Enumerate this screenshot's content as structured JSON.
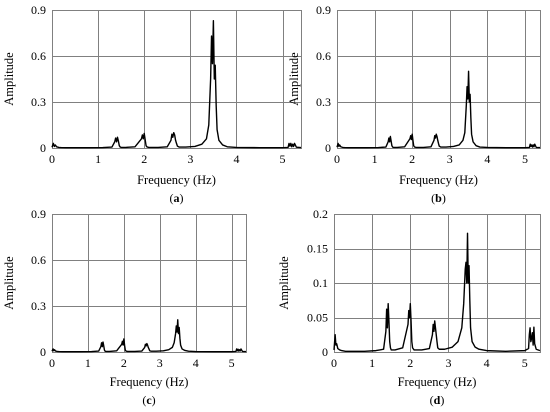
{
  "chart_data": [
    {
      "id": "a",
      "type": "line",
      "caption_letter": "a",
      "xlabel": "Frequency (Hz)",
      "ylabel": "Amplitude",
      "xlim": [
        0,
        5.4
      ],
      "ylim": [
        0,
        0.9
      ],
      "xticks": [
        0,
        1,
        2,
        3,
        4,
        5
      ],
      "yticks": [
        0,
        0.3,
        0.6,
        0.9
      ],
      "ytick_labels": [
        "0",
        "0.3",
        "0.6",
        "0.9"
      ],
      "grid": true,
      "series": [
        {
          "x": [
            0,
            0.03,
            0.05,
            0.07,
            0.1,
            0.15,
            0.2,
            0.3,
            0.5,
            0.8,
            1.1,
            1.3,
            1.36,
            1.38,
            1.4,
            1.42,
            1.44,
            1.46,
            1.48,
            1.5,
            1.6,
            1.8,
            1.94,
            1.96,
            1.98,
            2.0,
            2.02,
            2.04,
            2.06,
            2.1,
            2.3,
            2.5,
            2.58,
            2.6,
            2.62,
            2.64,
            2.66,
            2.68,
            2.7,
            2.72,
            2.76,
            2.9,
            3.1,
            3.25,
            3.35,
            3.4,
            3.44,
            3.46,
            3.48,
            3.5,
            3.52,
            3.54,
            3.56,
            3.58,
            3.62,
            3.7,
            3.8,
            4.0,
            4.5,
            5.0,
            5.12,
            5.14,
            5.16,
            5.18,
            5.2,
            5.22,
            5.24,
            5.26,
            5.3,
            5.4
          ],
          "y": [
            0.005,
            0.03,
            0.01,
            0.02,
            0.008,
            0.004,
            0.003,
            0.002,
            0.002,
            0.002,
            0.003,
            0.006,
            0.04,
            0.065,
            0.04,
            0.07,
            0.045,
            0.015,
            0.006,
            0.004,
            0.004,
            0.008,
            0.06,
            0.085,
            0.06,
            0.095,
            0.055,
            0.015,
            0.007,
            0.004,
            0.004,
            0.008,
            0.05,
            0.09,
            0.07,
            0.1,
            0.085,
            0.05,
            0.03,
            0.012,
            0.006,
            0.006,
            0.01,
            0.025,
            0.06,
            0.15,
            0.45,
            0.73,
            0.55,
            0.83,
            0.45,
            0.54,
            0.28,
            0.12,
            0.05,
            0.02,
            0.008,
            0.004,
            0.002,
            0.002,
            0.004,
            0.03,
            0.012,
            0.03,
            0.008,
            0.025,
            0.01,
            0.03,
            0.005,
            0.003
          ]
        }
      ]
    },
    {
      "id": "b",
      "type": "line",
      "caption_letter": "b",
      "xlabel": "Frequency (Hz)",
      "ylabel": "Amplitude",
      "xlim": [
        0,
        5.4
      ],
      "ylim": [
        0,
        0.9
      ],
      "xticks": [
        0,
        1,
        2,
        3,
        4,
        5
      ],
      "yticks": [
        0,
        0.3,
        0.6,
        0.9
      ],
      "ytick_labels": [
        "0",
        "0.3",
        "0.6",
        "0.9"
      ],
      "grid": true,
      "series": [
        {
          "x": [
            0,
            0.03,
            0.05,
            0.07,
            0.1,
            0.15,
            0.2,
            0.3,
            0.5,
            0.8,
            1.1,
            1.3,
            1.36,
            1.38,
            1.4,
            1.42,
            1.44,
            1.46,
            1.48,
            1.5,
            1.6,
            1.8,
            1.94,
            1.96,
            1.98,
            2.0,
            2.02,
            2.04,
            2.06,
            2.1,
            2.3,
            2.5,
            2.58,
            2.6,
            2.62,
            2.64,
            2.66,
            2.68,
            2.7,
            2.72,
            2.76,
            2.9,
            3.1,
            3.25,
            3.35,
            3.4,
            3.44,
            3.46,
            3.48,
            3.5,
            3.52,
            3.54,
            3.56,
            3.58,
            3.62,
            3.7,
            3.8,
            4.0,
            4.5,
            5.0,
            5.12,
            5.14,
            5.16,
            5.18,
            5.2,
            5.22,
            5.24,
            5.26,
            5.3,
            5.4
          ],
          "y": [
            0.005,
            0.03,
            0.01,
            0.02,
            0.008,
            0.004,
            0.003,
            0.002,
            0.002,
            0.002,
            0.003,
            0.006,
            0.04,
            0.065,
            0.04,
            0.075,
            0.045,
            0.015,
            0.006,
            0.004,
            0.004,
            0.008,
            0.06,
            0.08,
            0.055,
            0.09,
            0.05,
            0.015,
            0.007,
            0.004,
            0.004,
            0.008,
            0.05,
            0.08,
            0.065,
            0.09,
            0.075,
            0.05,
            0.03,
            0.012,
            0.006,
            0.006,
            0.01,
            0.02,
            0.05,
            0.1,
            0.28,
            0.4,
            0.32,
            0.5,
            0.3,
            0.35,
            0.2,
            0.09,
            0.04,
            0.015,
            0.006,
            0.004,
            0.002,
            0.002,
            0.004,
            0.025,
            0.01,
            0.02,
            0.006,
            0.02,
            0.008,
            0.025,
            0.004,
            0.003
          ]
        }
      ]
    },
    {
      "id": "c",
      "type": "line",
      "caption_letter": "c",
      "xlabel": "Frequency (Hz)",
      "ylabel": "Amplitude",
      "xlim": [
        0,
        5.4
      ],
      "ylim": [
        0,
        0.9
      ],
      "xticks": [
        0,
        1,
        2,
        3,
        4,
        5
      ],
      "yticks": [
        0,
        0.3,
        0.6,
        0.9
      ],
      "ytick_labels": [
        "0",
        "0.3",
        "0.6",
        "0.9"
      ],
      "grid": true,
      "series": [
        {
          "x": [
            0,
            0.03,
            0.05,
            0.07,
            0.1,
            0.15,
            0.2,
            0.3,
            0.5,
            0.8,
            1.1,
            1.3,
            1.36,
            1.38,
            1.4,
            1.42,
            1.44,
            1.46,
            1.48,
            1.5,
            1.6,
            1.8,
            1.94,
            1.96,
            1.98,
            2.0,
            2.02,
            2.04,
            2.06,
            2.1,
            2.3,
            2.5,
            2.58,
            2.6,
            2.62,
            2.64,
            2.66,
            2.68,
            2.7,
            2.72,
            2.76,
            2.9,
            3.1,
            3.25,
            3.35,
            3.4,
            3.44,
            3.46,
            3.48,
            3.5,
            3.52,
            3.54,
            3.56,
            3.58,
            3.62,
            3.7,
            3.8,
            4.0,
            4.5,
            5.0,
            5.12,
            5.14,
            5.16,
            5.18,
            5.2,
            5.22,
            5.24,
            5.26,
            5.3,
            5.4
          ],
          "y": [
            0.005,
            0.02,
            0.008,
            0.015,
            0.006,
            0.004,
            0.003,
            0.002,
            0.002,
            0.002,
            0.003,
            0.006,
            0.035,
            0.06,
            0.035,
            0.065,
            0.04,
            0.012,
            0.005,
            0.004,
            0.004,
            0.008,
            0.05,
            0.07,
            0.045,
            0.085,
            0.045,
            0.012,
            0.006,
            0.004,
            0.004,
            0.006,
            0.03,
            0.05,
            0.04,
            0.055,
            0.045,
            0.03,
            0.02,
            0.008,
            0.005,
            0.005,
            0.008,
            0.015,
            0.03,
            0.06,
            0.12,
            0.17,
            0.13,
            0.21,
            0.12,
            0.16,
            0.09,
            0.045,
            0.02,
            0.01,
            0.005,
            0.003,
            0.002,
            0.002,
            0.004,
            0.02,
            0.008,
            0.018,
            0.006,
            0.015,
            0.007,
            0.02,
            0.004,
            0.003
          ]
        }
      ]
    },
    {
      "id": "d",
      "type": "line",
      "caption_letter": "d",
      "xlabel": "Frequency (Hz)",
      "ylabel": "Amplitude",
      "xlim": [
        0,
        5.4
      ],
      "ylim": [
        0,
        0.2
      ],
      "xticks": [
        0,
        1,
        2,
        3,
        4,
        5
      ],
      "yticks": [
        0,
        0.05,
        0.1,
        0.15,
        0.2
      ],
      "ytick_labels": [
        "0",
        "0.05",
        "0.1",
        "0.15",
        "0.2"
      ],
      "grid": true,
      "series": [
        {
          "x": [
            0,
            0.03,
            0.05,
            0.07,
            0.1,
            0.15,
            0.2,
            0.3,
            0.5,
            0.8,
            1.1,
            1.3,
            1.36,
            1.38,
            1.4,
            1.42,
            1.44,
            1.46,
            1.48,
            1.5,
            1.6,
            1.8,
            1.94,
            1.96,
            1.98,
            2.0,
            2.02,
            2.04,
            2.06,
            2.1,
            2.3,
            2.5,
            2.58,
            2.6,
            2.62,
            2.64,
            2.66,
            2.68,
            2.7,
            2.72,
            2.76,
            2.9,
            3.1,
            3.25,
            3.35,
            3.4,
            3.44,
            3.46,
            3.48,
            3.5,
            3.52,
            3.54,
            3.56,
            3.58,
            3.62,
            3.7,
            3.8,
            4.0,
            4.5,
            5.0,
            5.1,
            5.12,
            5.14,
            5.16,
            5.18,
            5.2,
            5.22,
            5.24,
            5.26,
            5.3,
            5.4
          ],
          "y": [
            0.003,
            0.025,
            0.01,
            0.012,
            0.005,
            0.003,
            0.002,
            0.001,
            0.001,
            0.001,
            0.002,
            0.004,
            0.03,
            0.062,
            0.035,
            0.07,
            0.045,
            0.015,
            0.006,
            0.003,
            0.003,
            0.006,
            0.04,
            0.06,
            0.05,
            0.07,
            0.045,
            0.015,
            0.006,
            0.003,
            0.003,
            0.005,
            0.025,
            0.04,
            0.03,
            0.045,
            0.035,
            0.025,
            0.015,
            0.006,
            0.004,
            0.004,
            0.007,
            0.015,
            0.035,
            0.07,
            0.12,
            0.13,
            0.1,
            0.172,
            0.1,
            0.125,
            0.075,
            0.035,
            0.015,
            0.007,
            0.004,
            0.002,
            0.001,
            0.002,
            0.005,
            0.025,
            0.035,
            0.015,
            0.02,
            0.028,
            0.01,
            0.036,
            0.012,
            0.004,
            0.002
          ]
        }
      ]
    }
  ]
}
